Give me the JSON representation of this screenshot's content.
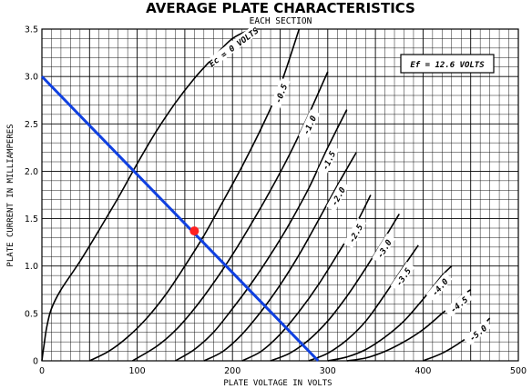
{
  "chart_data": {
    "type": "line",
    "title": "AVERAGE PLATE CHARACTERISTICS",
    "subtitle": "EACH SECTION",
    "xlabel": "PLATE VOLTAGE IN VOLTS",
    "ylabel": "PLATE CURRENT IN MILLIAMPERES",
    "xlim": [
      0,
      500
    ],
    "ylim": [
      0,
      3.5
    ],
    "x_ticks": [
      "0",
      "100",
      "200",
      "300",
      "400",
      "500"
    ],
    "y_ticks": [
      "0",
      "0.5",
      "1.0",
      "1.5",
      "2.0",
      "2.5",
      "3.0",
      "3.5"
    ],
    "grid": true,
    "annotation": "Ef = 12.6 VOLTS",
    "series": [
      {
        "label": "Ec = 0 VOLTS",
        "x": [
          0,
          2,
          5,
          10,
          20,
          40,
          60,
          80,
          100,
          120,
          140,
          160,
          180,
          200,
          220
        ],
        "y": [
          0,
          0.15,
          0.35,
          0.55,
          0.75,
          1.05,
          1.38,
          1.72,
          2.08,
          2.42,
          2.72,
          2.98,
          3.2,
          3.4,
          3.5
        ]
      },
      {
        "label": "-0.5",
        "x": [
          50,
          70,
          90,
          110,
          130,
          150,
          170,
          190,
          210,
          230,
          250,
          270
        ],
        "y": [
          0,
          0.1,
          0.25,
          0.45,
          0.7,
          1.0,
          1.32,
          1.68,
          2.05,
          2.45,
          2.9,
          3.5
        ]
      },
      {
        "label": "-1.0",
        "x": [
          95,
          120,
          140,
          160,
          180,
          200,
          220,
          240,
          260,
          280,
          300
        ],
        "y": [
          0,
          0.15,
          0.32,
          0.55,
          0.82,
          1.12,
          1.45,
          1.8,
          2.18,
          2.6,
          3.05
        ]
      },
      {
        "label": "-1.5",
        "x": [
          140,
          160,
          180,
          200,
          220,
          240,
          260,
          280,
          300,
          320
        ],
        "y": [
          0,
          0.12,
          0.3,
          0.55,
          0.82,
          1.12,
          1.45,
          1.82,
          2.25,
          2.65
        ]
      },
      {
        "label": "-2.0",
        "x": [
          170,
          190,
          210,
          230,
          250,
          270,
          290,
          310,
          330
        ],
        "y": [
          0,
          0.1,
          0.28,
          0.52,
          0.8,
          1.12,
          1.48,
          1.85,
          2.2
        ]
      },
      {
        "label": "-2.5",
        "x": [
          210,
          230,
          250,
          270,
          290,
          310,
          330,
          345
        ],
        "y": [
          0,
          0.1,
          0.28,
          0.52,
          0.8,
          1.12,
          1.45,
          1.75
        ]
      },
      {
        "label": "-3.0",
        "x": [
          240,
          260,
          280,
          300,
          320,
          340,
          360,
          375
        ],
        "y": [
          0,
          0.08,
          0.22,
          0.42,
          0.68,
          0.98,
          1.3,
          1.55
        ]
      },
      {
        "label": "-3.5",
        "x": [
          280,
          300,
          320,
          340,
          360,
          380,
          395
        ],
        "y": [
          0,
          0.08,
          0.22,
          0.42,
          0.7,
          1.0,
          1.22
        ]
      },
      {
        "label": "-4.0",
        "x": [
          300,
          320,
          340,
          360,
          380,
          400,
          420,
          430
        ],
        "y": [
          0,
          0.04,
          0.12,
          0.25,
          0.42,
          0.65,
          0.9,
          1.0
        ]
      },
      {
        "label": "-4.5",
        "x": [
          320,
          340,
          360,
          380,
          400,
          420,
          440,
          450
        ],
        "y": [
          0,
          0.03,
          0.1,
          0.2,
          0.33,
          0.5,
          0.68,
          0.75
        ]
      },
      {
        "label": "-5.0",
        "x": [
          400,
          420,
          440,
          460,
          470
        ],
        "y": [
          0,
          0.08,
          0.2,
          0.35,
          0.45
        ]
      }
    ],
    "load_line": {
      "x": [
        0,
        290
      ],
      "y": [
        3.0,
        0
      ],
      "color": "#1040e0"
    },
    "operating_point": {
      "x": 160,
      "y": 1.37,
      "color": "#ff2020"
    }
  }
}
